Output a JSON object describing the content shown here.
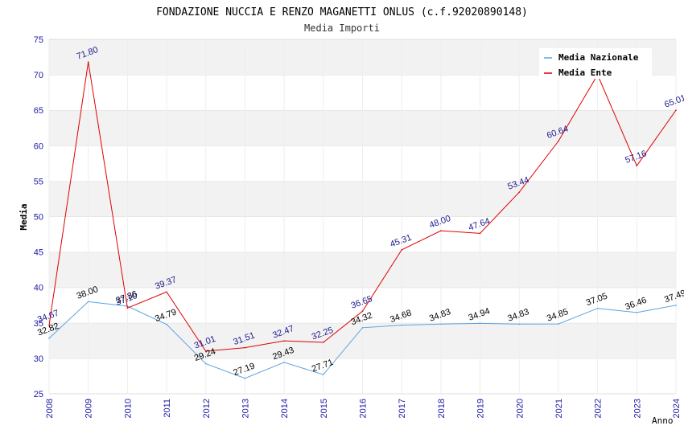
{
  "header": {
    "title": "FONDAZIONE NUCCIA E RENZO MAGANETTI ONLUS (c.f.92020890148)",
    "subtitle": "Media Importi"
  },
  "chart_data": {
    "type": "line",
    "title": "FONDAZIONE NUCCIA E RENZO MAGANETTI ONLUS (c.f.92020890148)",
    "subtitle": "Media Importi",
    "xlabel": "Anno",
    "ylabel": "Media",
    "ylim": [
      25,
      75
    ],
    "yticks": [
      25,
      30,
      35,
      40,
      45,
      50,
      55,
      60,
      65,
      70,
      75
    ],
    "grid": "horizontal bands",
    "legend_position": "top-right",
    "x": [
      "2008",
      "2009",
      "2010",
      "2011",
      "2012",
      "2013",
      "2014",
      "2015",
      "2016",
      "2017",
      "2018",
      "2019",
      "2020",
      "2021",
      "2022",
      "2023",
      "2024"
    ],
    "series": [
      {
        "name": "Media Nazionale",
        "color": "#5ba3e0",
        "values": [
          32.82,
          38.0,
          37.36,
          34.79,
          29.24,
          27.19,
          29.43,
          27.71,
          34.32,
          34.68,
          34.83,
          34.94,
          34.83,
          34.85,
          37.05,
          36.46,
          37.49
        ],
        "labels": [
          "32.82",
          "38.00",
          "37.36",
          "34.79",
          "29.24",
          "27.19",
          "29.43",
          "27.71",
          "34.32",
          "34.68",
          "34.83",
          "34.94",
          "34.83",
          "34.85",
          "37.05",
          "36.46",
          "37.49"
        ]
      },
      {
        "name": "Media Ente",
        "color": "#e00000",
        "values": [
          34.67,
          71.8,
          37.1,
          39.37,
          31.01,
          31.51,
          32.47,
          32.25,
          36.65,
          45.31,
          48.0,
          47.64,
          53.44,
          60.64,
          70.0,
          57.16,
          65.01
        ],
        "labels": [
          "34.67",
          "71.80",
          "37.10",
          "39.37",
          "31.01",
          "31.51",
          "32.47",
          "32.25",
          "36.65",
          "45.31",
          "48.00",
          "47.64",
          "53.44",
          "60.64",
          "",
          "57.16",
          "65.01"
        ]
      }
    ]
  }
}
